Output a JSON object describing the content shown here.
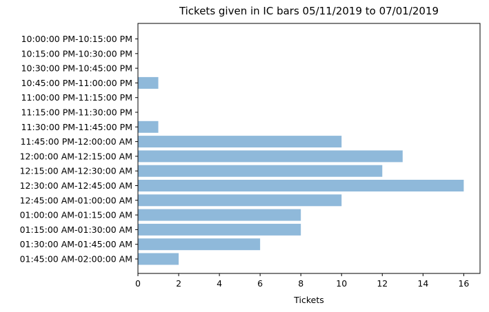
{
  "chart_data": {
    "type": "bar",
    "orientation": "horizontal",
    "title": "Tickets given in IC bars 05/11/2019 to 07/01/2019",
    "xlabel": "Tickets",
    "ylabel": "",
    "xlim": [
      0,
      16.8
    ],
    "xticks": [
      0,
      2,
      4,
      6,
      8,
      10,
      12,
      14,
      16
    ],
    "grid": false,
    "legend": "none",
    "bar_color": "#8fb9da",
    "categories": [
      "10:00:00 PM-10:15:00 PM",
      "10:15:00 PM-10:30:00 PM",
      "10:30:00 PM-10:45:00 PM",
      "10:45:00 PM-11:00:00 PM",
      "11:00:00 PM-11:15:00 PM",
      "11:15:00 PM-11:30:00 PM",
      "11:30:00 PM-11:45:00 PM",
      "11:45:00 PM-12:00:00 AM",
      "12:00:00 AM-12:15:00 AM",
      "12:15:00 AM-12:30:00 AM",
      "12:30:00 AM-12:45:00 AM",
      "12:45:00 AM-01:00:00 AM",
      "01:00:00 AM-01:15:00 AM",
      "01:15:00 AM-01:30:00 AM",
      "01:30:00 AM-01:45:00 AM",
      "01:45:00 AM-02:00:00 AM"
    ],
    "values": [
      0,
      0,
      0,
      1,
      0,
      0,
      1,
      10,
      13,
      12,
      16,
      10,
      8,
      8,
      6,
      2
    ]
  }
}
